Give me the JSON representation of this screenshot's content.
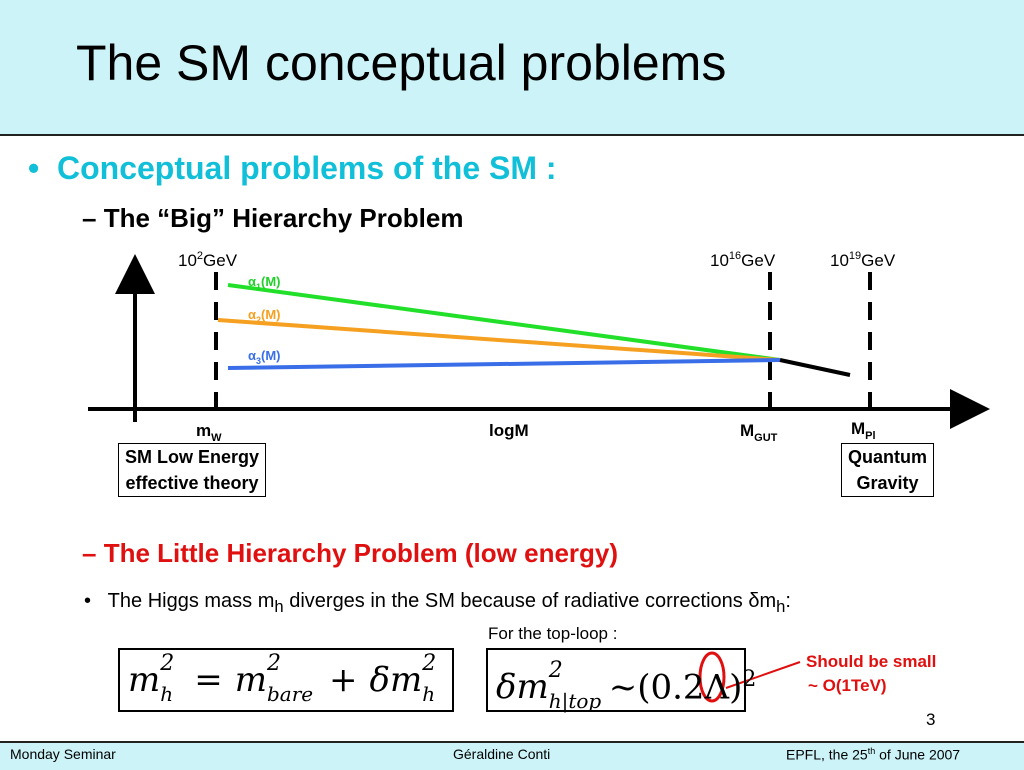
{
  "header": {
    "title": "The SM conceptual problems"
  },
  "bullet": "Conceptual problems of the SM :",
  "big_hierarchy": {
    "heading": "The “Big” Hierarchy Problem",
    "scales": [
      {
        "base": "10",
        "exp": "2",
        "unit": "GeV"
      },
      {
        "base": "10",
        "exp": "16",
        "unit": "GeV"
      },
      {
        "base": "10",
        "exp": "19",
        "unit": "GeV"
      }
    ],
    "couplings": [
      {
        "symbol": "α",
        "index": "1",
        "arg": "(M)"
      },
      {
        "symbol": "α",
        "index": "2",
        "arg": "(M)"
      },
      {
        "symbol": "α",
        "index": "3",
        "arg": "(M)"
      }
    ],
    "axis_marks": [
      {
        "main": "m",
        "sub": "W"
      },
      {
        "main": "logM"
      },
      {
        "main": "M",
        "sub": "GUT"
      },
      {
        "main": "M",
        "sub": "Pl"
      }
    ],
    "boxes": [
      [
        "SM Low Energy",
        "effective theory"
      ],
      [
        "Quantum",
        "Gravity"
      ]
    ]
  },
  "little_hierarchy": {
    "heading": "The Little Hierarchy Problem (low energy)",
    "sentence": [
      "The Higgs mass m",
      "h",
      " diverges in the SM because of radiative corrections ",
      "δ",
      "m",
      "h",
      ":"
    ],
    "top_loop": "For the top-loop :",
    "formula_1": [
      {
        "base": "m",
        "sub": "h",
        "sup": "2"
      },
      "=",
      {
        "base": "m",
        "sub": "bare",
        "sup": "2"
      },
      "+",
      {
        "base": "δm",
        "sub": "h",
        "sup": "2"
      }
    ],
    "formula_2": [
      {
        "base": "δm",
        "sub": "h|top",
        "sup": "2"
      },
      "~(0.2",
      "Λ",
      ")",
      "2"
    ],
    "note": [
      "Should be small",
      "~ O(1TeV)"
    ]
  },
  "page_number": "3",
  "footer": {
    "left": "Monday Seminar",
    "center": "Géraldine Conti",
    "right": [
      "EPFL, the 25",
      "th",
      " of June 2007"
    ]
  }
}
